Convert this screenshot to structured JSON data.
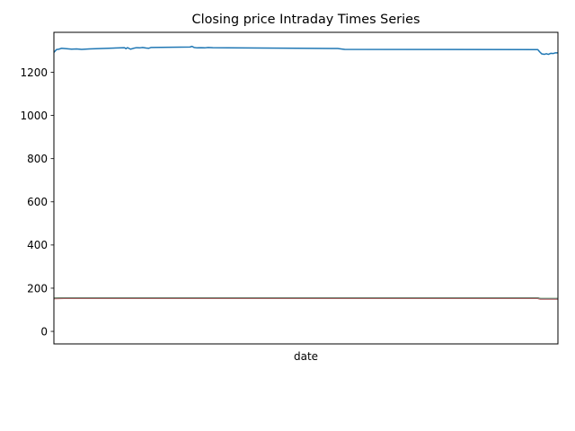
{
  "chart_data": {
    "type": "line",
    "title": "Closing price Intraday Times Series",
    "xlabel": "date",
    "ylabel": "",
    "ylim": [
      -58,
      1385
    ],
    "y_ticks": [
      0,
      200,
      400,
      600,
      800,
      1000,
      1200
    ],
    "x_ticks": [],
    "grid": false,
    "legend": "none",
    "xlim": [
      0,
      100
    ],
    "series": [
      {
        "color": "#1f77b4",
        "points": [
          [
            0,
            1292
          ],
          [
            0.5,
            1305
          ],
          [
            1,
            1307
          ],
          [
            1.5,
            1311
          ],
          [
            2.5,
            1309
          ],
          [
            3.5,
            1307
          ],
          [
            4.5,
            1308
          ],
          [
            5.5,
            1306
          ],
          [
            7,
            1308
          ],
          [
            14,
            1314
          ],
          [
            14.3,
            1309
          ],
          [
            14.6,
            1314
          ],
          [
            15.2,
            1307
          ],
          [
            15.8,
            1311
          ],
          [
            16.4,
            1314
          ],
          [
            17,
            1313
          ],
          [
            17.6,
            1315
          ],
          [
            18.3,
            1312
          ],
          [
            18.8,
            1311
          ],
          [
            19.3,
            1315
          ],
          [
            27,
            1317
          ],
          [
            27.4,
            1320
          ],
          [
            27.8,
            1315
          ],
          [
            28.4,
            1313
          ],
          [
            29.2,
            1314
          ],
          [
            29.9,
            1313
          ],
          [
            30.6,
            1315
          ],
          [
            31.5,
            1314
          ],
          [
            55,
            1310
          ],
          [
            56.3,
            1310
          ],
          [
            57.3,
            1307
          ],
          [
            57.7,
            1306
          ],
          [
            96,
            1305
          ],
          [
            96.4,
            1294
          ],
          [
            96.8,
            1285
          ],
          [
            97.3,
            1283
          ],
          [
            97.7,
            1286
          ],
          [
            98.1,
            1283
          ],
          [
            98.6,
            1288
          ],
          [
            99.1,
            1287
          ],
          [
            99.5,
            1290
          ],
          [
            100,
            1290
          ]
        ]
      },
      {
        "color": "#ff7f0e",
        "points": [
          [
            0,
            153
          ],
          [
            2,
            154
          ],
          [
            96,
            154
          ],
          [
            96.5,
            151
          ],
          [
            100,
            151
          ]
        ]
      },
      {
        "color": "#2ca02c",
        "points": [
          [
            0,
            154
          ],
          [
            2,
            155
          ],
          [
            96,
            155
          ],
          [
            96.5,
            152
          ],
          [
            100,
            152
          ]
        ]
      },
      {
        "color": "#d62728",
        "points": [
          [
            0,
            152
          ],
          [
            2,
            153
          ],
          [
            96,
            153
          ],
          [
            96.5,
            150
          ],
          [
            100,
            150
          ]
        ]
      },
      {
        "color": "#7f7f7f",
        "points": [
          [
            0,
            153.5
          ],
          [
            2,
            154.5
          ],
          [
            96,
            154.5
          ],
          [
            96.5,
            151.5
          ],
          [
            100,
            151.5
          ]
        ]
      }
    ]
  }
}
